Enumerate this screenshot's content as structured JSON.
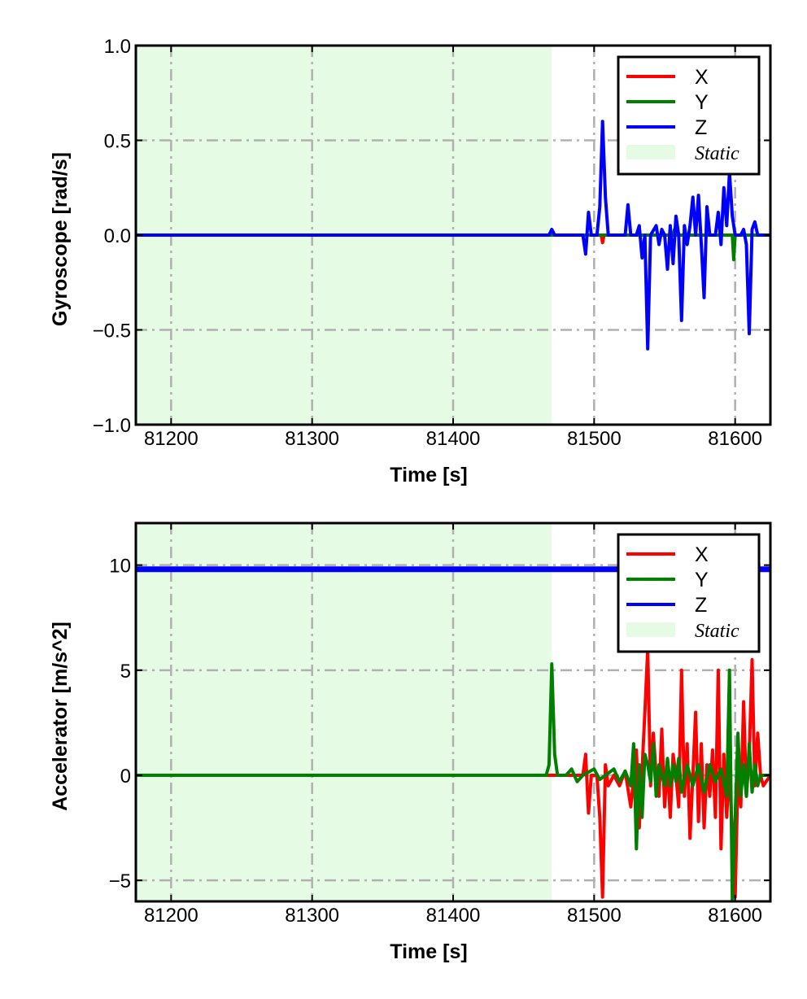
{
  "chart_data": [
    {
      "type": "line",
      "xlabel": "Time [s]",
      "ylabel": "Gyroscope [rad/s]",
      "xlim": [
        81175,
        81625
      ],
      "ylim": [
        -1.0,
        1.0
      ],
      "xticks": [
        81200,
        81300,
        81400,
        81500,
        81600
      ],
      "xtick_labels": [
        "81200",
        "81300",
        "81400",
        "81500",
        "81600"
      ],
      "yticks": [
        -1.0,
        -0.5,
        0.0,
        0.5,
        1.0
      ],
      "ytick_labels": [
        "−1.0",
        "−0.5",
        "0.0",
        "0.5",
        "1.0"
      ],
      "grid": true,
      "legend_position": "top-right",
      "static_region": [
        81175,
        81470
      ],
      "legend": [
        {
          "label": "X",
          "color": "#ff0000",
          "kind": "line"
        },
        {
          "label": "Y",
          "color": "#008000",
          "kind": "line"
        },
        {
          "label": "Z",
          "color": "#0000ff",
          "kind": "line"
        },
        {
          "label": "Static",
          "color": "#e6fbe3",
          "kind": "patch"
        }
      ],
      "series": [
        {
          "name": "X",
          "color": "#ff0000",
          "points": [
            [
              81175,
              0
            ],
            [
              81505,
              0
            ],
            [
              81506,
              -0.04
            ],
            [
              81507,
              0
            ],
            [
              81625,
              0
            ]
          ]
        },
        {
          "name": "Y",
          "color": "#008000",
          "points": [
            [
              81175,
              0
            ],
            [
              81556,
              0
            ],
            [
              81557,
              0.03
            ],
            [
              81558,
              0
            ],
            [
              81598,
              0
            ],
            [
              81599,
              -0.13
            ],
            [
              81600,
              0
            ],
            [
              81625,
              0
            ]
          ]
        },
        {
          "name": "Z",
          "color": "#0000ff",
          "points": [
            [
              81175,
              0
            ],
            [
              81468,
              0
            ],
            [
              81470,
              0.03
            ],
            [
              81472,
              0
            ],
            [
              81492,
              0
            ],
            [
              81494,
              -0.1
            ],
            [
              81496,
              0.12
            ],
            [
              81498,
              0
            ],
            [
              81502,
              0
            ],
            [
              81504,
              0.15
            ],
            [
              81506,
              0.6
            ],
            [
              81508,
              0.2
            ],
            [
              81510,
              0
            ],
            [
              81522,
              0
            ],
            [
              81524,
              0.16
            ],
            [
              81526,
              0
            ],
            [
              81530,
              0
            ],
            [
              81532,
              0.05
            ],
            [
              81534,
              -0.12
            ],
            [
              81536,
              0
            ],
            [
              81538,
              -0.6
            ],
            [
              81540,
              0
            ],
            [
              81544,
              0.05
            ],
            [
              81546,
              -0.05
            ],
            [
              81548,
              0.03
            ],
            [
              81550,
              0
            ],
            [
              81552,
              -0.18
            ],
            [
              81554,
              0.05
            ],
            [
              81556,
              -0.15
            ],
            [
              81558,
              0.1
            ],
            [
              81560,
              0
            ],
            [
              81562,
              -0.45
            ],
            [
              81564,
              0.05
            ],
            [
              81566,
              -0.05
            ],
            [
              81568,
              0.05
            ],
            [
              81570,
              0.2
            ],
            [
              81572,
              0
            ],
            [
              81574,
              0.21
            ],
            [
              81576,
              -0.05
            ],
            [
              81578,
              -0.33
            ],
            [
              81580,
              0.15
            ],
            [
              81582,
              0
            ],
            [
              81586,
              0
            ],
            [
              81588,
              0.12
            ],
            [
              81590,
              -0.05
            ],
            [
              81592,
              0.25
            ],
            [
              81594,
              0.05
            ],
            [
              81596,
              0.33
            ],
            [
              81598,
              0.1
            ],
            [
              81600,
              0
            ],
            [
              81604,
              0
            ],
            [
              81606,
              0.03
            ],
            [
              81608,
              -0.05
            ],
            [
              81610,
              -0.52
            ],
            [
              81612,
              0.03
            ],
            [
              81614,
              0.07
            ],
            [
              81616,
              0
            ],
            [
              81625,
              0
            ]
          ]
        }
      ]
    },
    {
      "type": "line",
      "xlabel": "Time [s]",
      "ylabel": "Accelerator [m/s^2]",
      "xlim": [
        81175,
        81625
      ],
      "ylim": [
        -6.0,
        12.0
      ],
      "xticks": [
        81200,
        81300,
        81400,
        81500,
        81600
      ],
      "xtick_labels": [
        "81200",
        "81300",
        "81400",
        "81500",
        "81600"
      ],
      "yticks": [
        -5,
        0,
        5,
        10
      ],
      "ytick_labels": [
        "−5",
        "0",
        "5",
        "10"
      ],
      "grid": true,
      "legend_position": "top-right",
      "static_region": [
        81175,
        81470
      ],
      "legend": [
        {
          "label": "X",
          "color": "#ff0000",
          "kind": "line"
        },
        {
          "label": "Y",
          "color": "#008000",
          "kind": "line"
        },
        {
          "label": "Z",
          "color": "#0000ff",
          "kind": "line"
        },
        {
          "label": "Static",
          "color": "#e6fbe3",
          "kind": "patch"
        }
      ],
      "series": [
        {
          "name": "X",
          "color": "#ff0000",
          "points": [
            [
              81175,
              0
            ],
            [
              81492,
              0
            ],
            [
              81494,
              1.0
            ],
            [
              81496,
              -1.8
            ],
            [
              81498,
              0
            ],
            [
              81502,
              0
            ],
            [
              81504,
              -2.0
            ],
            [
              81506,
              -5.8
            ],
            [
              81508,
              0.5
            ],
            [
              81510,
              -0.5
            ],
            [
              81514,
              0
            ],
            [
              81518,
              -0.5
            ],
            [
              81522,
              0.2
            ],
            [
              81526,
              -1.5
            ],
            [
              81530,
              1.2
            ],
            [
              81532,
              -2.5
            ],
            [
              81536,
              3.0
            ],
            [
              81538,
              6.0
            ],
            [
              81540,
              -0.5
            ],
            [
              81542,
              2.0
            ],
            [
              81544,
              0
            ],
            [
              81546,
              -1.0
            ],
            [
              81548,
              2.2
            ],
            [
              81550,
              -1.5
            ],
            [
              81552,
              0.5
            ],
            [
              81554,
              -2.0
            ],
            [
              81556,
              1.0
            ],
            [
              81558,
              0
            ],
            [
              81560,
              -1.5
            ],
            [
              81562,
              5.0
            ],
            [
              81564,
              -1.0
            ],
            [
              81566,
              1.5
            ],
            [
              81568,
              -3.0
            ],
            [
              81570,
              0
            ],
            [
              81572,
              3.0
            ],
            [
              81574,
              -2.2
            ],
            [
              81576,
              1.5
            ],
            [
              81578,
              -2.5
            ],
            [
              81580,
              0.5
            ],
            [
              81582,
              -1.0
            ],
            [
              81584,
              1.2
            ],
            [
              81586,
              -2.0
            ],
            [
              81588,
              5.0
            ],
            [
              81590,
              -3.5
            ],
            [
              81592,
              1.0
            ],
            [
              81594,
              -2.0
            ],
            [
              81596,
              0.5
            ],
            [
              81598,
              -3.0
            ],
            [
              81600,
              -5.8
            ],
            [
              81602,
              0
            ],
            [
              81604,
              -1.5
            ],
            [
              81606,
              3.5
            ],
            [
              81608,
              -1.0
            ],
            [
              81610,
              1.0
            ],
            [
              81612,
              5.5
            ],
            [
              81614,
              -0.5
            ],
            [
              81616,
              2.0
            ],
            [
              81618,
              0
            ],
            [
              81620,
              -0.5
            ],
            [
              81625,
              0
            ]
          ]
        },
        {
          "name": "Y",
          "color": "#008000",
          "points": [
            [
              81175,
              0
            ],
            [
              81466,
              0
            ],
            [
              81468,
              0.5
            ],
            [
              81470,
              5.3
            ],
            [
              81472,
              1.0
            ],
            [
              81474,
              0
            ],
            [
              81480,
              0
            ],
            [
              81484,
              0.3
            ],
            [
              81488,
              -0.3
            ],
            [
              81492,
              0
            ],
            [
              81500,
              0.3
            ],
            [
              81504,
              -0.2
            ],
            [
              81508,
              0
            ],
            [
              81514,
              0.3
            ],
            [
              81518,
              -0.3
            ],
            [
              81522,
              0.2
            ],
            [
              81526,
              -0.5
            ],
            [
              81528,
              1.5
            ],
            [
              81530,
              -3.5
            ],
            [
              81532,
              0.5
            ],
            [
              81534,
              -2.0
            ],
            [
              81536,
              1.0
            ],
            [
              81538,
              0.5
            ],
            [
              81540,
              -0.3
            ],
            [
              81542,
              1.5
            ],
            [
              81544,
              -1.0
            ],
            [
              81546,
              0.5
            ],
            [
              81548,
              0
            ],
            [
              81550,
              -0.5
            ],
            [
              81552,
              0.8
            ],
            [
              81554,
              -0.5
            ],
            [
              81556,
              0.5
            ],
            [
              81558,
              -0.3
            ],
            [
              81560,
              0.8
            ],
            [
              81562,
              -0.8
            ],
            [
              81566,
              0.5
            ],
            [
              81570,
              -0.5
            ],
            [
              81574,
              0.5
            ],
            [
              81578,
              -0.8
            ],
            [
              81582,
              0.5
            ],
            [
              81586,
              -0.3
            ],
            [
              81590,
              0.3
            ],
            [
              81594,
              -1.0
            ],
            [
              81596,
              5.0
            ],
            [
              81598,
              -6.0
            ],
            [
              81600,
              -2.0
            ],
            [
              81602,
              2.0
            ],
            [
              81604,
              -1.0
            ],
            [
              81606,
              0.5
            ],
            [
              81608,
              -1.0
            ],
            [
              81610,
              1.5
            ],
            [
              81612,
              -0.8
            ],
            [
              81614,
              0.5
            ],
            [
              81616,
              -0.5
            ],
            [
              81618,
              0
            ],
            [
              81625,
              0
            ]
          ]
        },
        {
          "name": "Z",
          "color": "#0000ff",
          "points": [
            [
              81175,
              9.8
            ],
            [
              81625,
              9.8
            ]
          ]
        }
      ]
    }
  ]
}
